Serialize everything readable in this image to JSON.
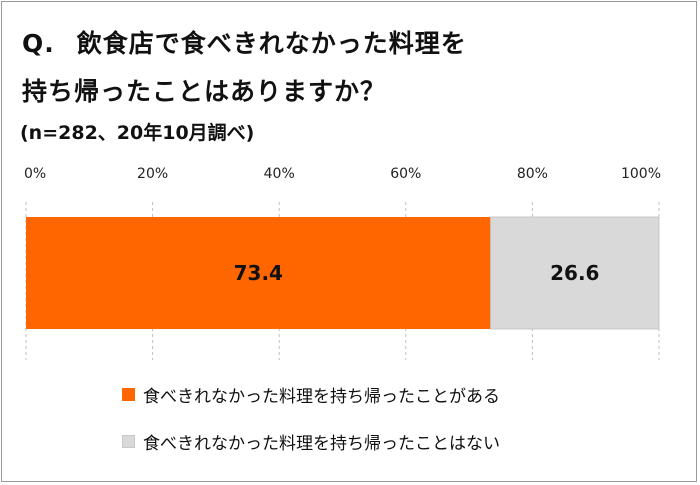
{
  "title_q": "Q.",
  "title_line1": "飲食店で食べきれなかった料理を",
  "title_line2": "持ち帰ったことはありますか？",
  "subtitle": "(n=282、20年10月調べ)",
  "colors": {
    "series0": "#ff6600",
    "series1": "#d9d9d9",
    "grid": "#bfbfbf"
  },
  "chart_data": {
    "type": "bar",
    "orientation": "horizontal-stacked-100",
    "xlim": [
      0,
      100
    ],
    "xticks": [
      "0%",
      "20%",
      "40%",
      "60%",
      "80%",
      "100%"
    ],
    "series": [
      {
        "name": "食べきれなかった料理を持ち帰ったことがある",
        "values": [
          73.4
        ],
        "label": "73.4"
      },
      {
        "name": "食べきれなかった料理を持ち帰ったことはない",
        "values": [
          26.6
        ],
        "label": "26.6"
      }
    ]
  }
}
